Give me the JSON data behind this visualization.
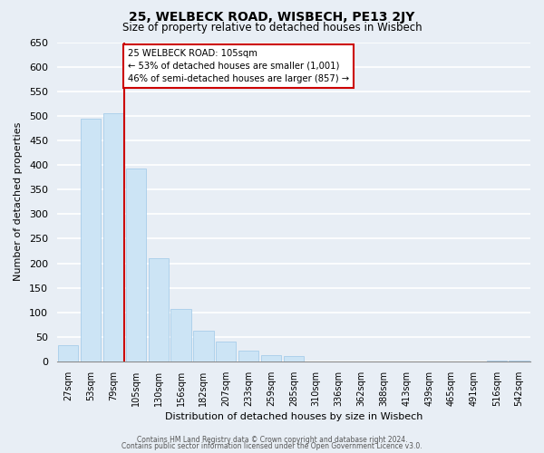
{
  "title": "25, WELBECK ROAD, WISBECH, PE13 2JY",
  "subtitle": "Size of property relative to detached houses in Wisbech",
  "xlabel": "Distribution of detached houses by size in Wisbech",
  "ylabel": "Number of detached properties",
  "bar_labels": [
    "27sqm",
    "53sqm",
    "79sqm",
    "105sqm",
    "130sqm",
    "156sqm",
    "182sqm",
    "207sqm",
    "233sqm",
    "259sqm",
    "285sqm",
    "310sqm",
    "336sqm",
    "362sqm",
    "388sqm",
    "413sqm",
    "439sqm",
    "465sqm",
    "491sqm",
    "516sqm",
    "542sqm"
  ],
  "bar_heights": [
    33,
    495,
    505,
    393,
    210,
    107,
    62,
    40,
    22,
    13,
    11,
    0,
    0,
    0,
    0,
    0,
    0,
    0,
    0,
    1,
    1
  ],
  "bar_color": "#cce4f5",
  "bar_edge_color": "#9dc8e8",
  "vline_color": "#cc0000",
  "annotation_title": "25 WELBECK ROAD: 105sqm",
  "annotation_line1": "← 53% of detached houses are smaller (1,001)",
  "annotation_line2": "46% of semi-detached houses are larger (857) →",
  "annotation_box_color": "#ffffff",
  "annotation_box_edge": "#cc0000",
  "ylim": [
    0,
    650
  ],
  "yticks": [
    0,
    50,
    100,
    150,
    200,
    250,
    300,
    350,
    400,
    450,
    500,
    550,
    600,
    650
  ],
  "footer1": "Contains HM Land Registry data © Crown copyright and database right 2024.",
  "footer2": "Contains public sector information licensed under the Open Government Licence v3.0.",
  "bg_color": "#e8eef5",
  "plot_bg_color": "#e8eef5"
}
